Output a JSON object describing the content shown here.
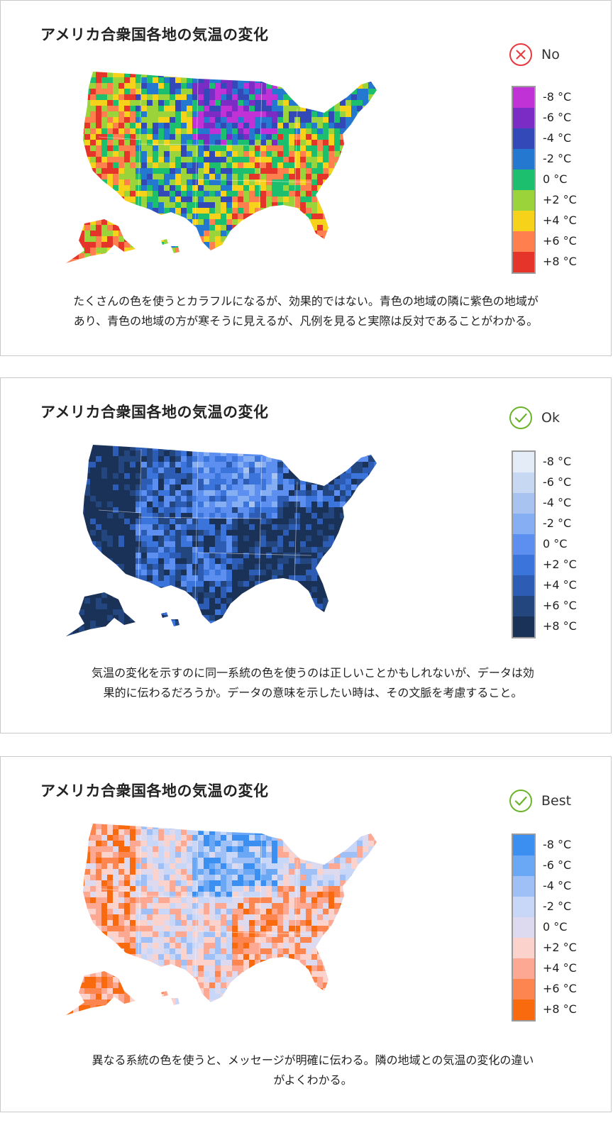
{
  "legend_labels": [
    "-8 °C",
    "-6 °C",
    "-4 °C",
    "-2 °C",
    "0 °C",
    "+2 °C",
    "+4 °C",
    "+6 °C",
    "+8 °C"
  ],
  "panels": [
    {
      "title": "アメリカ合衆国各地の気温の変化",
      "verdict": "No",
      "verdict_icon": "x-circle-icon",
      "verdict_color": "#e8383d",
      "palette": [
        "#c132d6",
        "#7b2cc4",
        "#3349b7",
        "#2478d0",
        "#1cbf6e",
        "#9bd33a",
        "#f6d21b",
        "#ff7f4f",
        "#e5352b"
      ],
      "caption_lines": [
        "たくさんの色を使うとカラフルになるが、効果的ではない。青色の地域の隣に紫色の地域が",
        "あり、青色の地域の方が寒そうに見えるが、凡例を見ると実際は反対であることがわかる。"
      ]
    },
    {
      "title": "アメリカ合衆国各地の気温の変化",
      "verdict": "Ok",
      "verdict_icon": "check-circle-icon",
      "verdict_color": "#6bb42a",
      "palette": [
        "#e3ecf7",
        "#c6d8f2",
        "#a9c3f0",
        "#86aef2",
        "#5d8ff0",
        "#3b74da",
        "#2c5cb4",
        "#23467f",
        "#1a3158"
      ],
      "caption_lines": [
        "気温の変化を示すのに同一系統の色を使うのは正しいことかもしれないが、データは効",
        "果的に伝わるだろうか。データの意味を示したい時は、その文脈を考慮すること。"
      ]
    },
    {
      "title": "アメリカ合衆国各地の気温の変化",
      "verdict": "Best",
      "verdict_icon": "check-circle-icon",
      "verdict_color": "#6bb42a",
      "palette": [
        "#3b8ff0",
        "#6aa7f4",
        "#9fc0f7",
        "#c8d6f8",
        "#ddd9ee",
        "#fcd3cc",
        "#fca892",
        "#fc8550",
        "#f96a0f"
      ],
      "caption_lines": [
        "異なる系統の色を使うと、メッセージが明確に伝わる。隣の地域との気温の変化の違い",
        "がよくわかる。"
      ]
    }
  ]
}
